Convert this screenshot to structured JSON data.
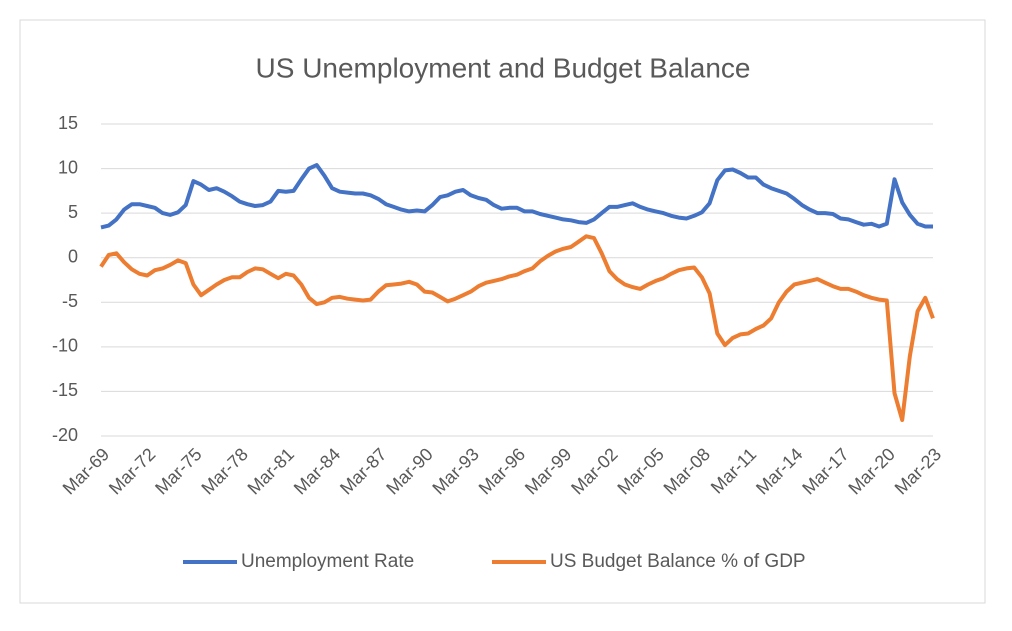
{
  "chart_data": {
    "type": "line",
    "title": "US Unemployment and Budget Balance",
    "categories": [
      "Mar-69",
      null,
      null,
      null,
      null,
      null,
      "Mar-72",
      null,
      null,
      null,
      null,
      null,
      "Mar-75",
      null,
      null,
      null,
      null,
      null,
      "Mar-78",
      null,
      null,
      null,
      null,
      null,
      "Mar-81",
      null,
      null,
      null,
      null,
      null,
      "Mar-84",
      null,
      null,
      null,
      null,
      null,
      "Mar-87",
      null,
      null,
      null,
      null,
      null,
      "Mar-90",
      null,
      null,
      null,
      null,
      null,
      "Mar-93",
      null,
      null,
      null,
      null,
      null,
      "Mar-96",
      null,
      null,
      null,
      null,
      null,
      "Mar-99",
      null,
      null,
      null,
      null,
      null,
      "Mar-02",
      null,
      null,
      null,
      null,
      null,
      "Mar-05",
      null,
      null,
      null,
      null,
      null,
      "Mar-08",
      null,
      null,
      null,
      null,
      null,
      "Mar-11",
      null,
      null,
      null,
      null,
      null,
      "Mar-14",
      null,
      null,
      null,
      null,
      null,
      "Mar-17",
      null,
      null,
      null,
      null,
      null,
      "Mar-20",
      null,
      null,
      null,
      null,
      null,
      "Mar-23"
    ],
    "series": [
      {
        "name": "Unemployment Rate",
        "color": "#4472c4",
        "values": [
          3.4,
          3.6,
          4.3,
          5.4,
          6.0,
          6.0,
          5.8,
          5.6,
          5.0,
          4.8,
          5.1,
          5.9,
          8.6,
          8.2,
          7.6,
          7.8,
          7.4,
          6.9,
          6.3,
          6.0,
          5.8,
          5.9,
          6.3,
          7.5,
          7.4,
          7.5,
          8.8,
          10.0,
          10.4,
          9.2,
          7.8,
          7.4,
          7.3,
          7.2,
          7.2,
          7.0,
          6.6,
          6.0,
          5.7,
          5.4,
          5.2,
          5.3,
          5.2,
          5.9,
          6.8,
          7.0,
          7.4,
          7.6,
          7.0,
          6.7,
          6.5,
          5.9,
          5.5,
          5.6,
          5.6,
          5.2,
          5.2,
          4.9,
          4.7,
          4.5,
          4.3,
          4.2,
          4.0,
          3.9,
          4.3,
          5.0,
          5.7,
          5.7,
          5.9,
          6.1,
          5.7,
          5.4,
          5.2,
          5.0,
          4.7,
          4.5,
          4.4,
          4.7,
          5.1,
          6.1,
          8.7,
          9.8,
          9.9,
          9.5,
          9.0,
          9.0,
          8.2,
          7.8,
          7.5,
          7.2,
          6.6,
          5.9,
          5.4,
          5.0,
          5.0,
          4.9,
          4.4,
          4.3,
          4.0,
          3.7,
          3.8,
          3.5,
          3.8,
          8.8,
          6.2,
          4.8,
          3.8,
          3.5,
          3.5
        ]
      },
      {
        "name": "US Budget Balance % of GDP",
        "color": "#ed7d31",
        "values": [
          -1.0,
          0.3,
          0.5,
          -0.5,
          -1.3,
          -1.8,
          -2.0,
          -1.4,
          -1.2,
          -0.8,
          -0.3,
          -0.6,
          -3.0,
          -4.2,
          -3.6,
          -3.0,
          -2.5,
          -2.2,
          -2.2,
          -1.6,
          -1.2,
          -1.3,
          -1.8,
          -2.3,
          -1.8,
          -2.0,
          -3.0,
          -4.5,
          -5.2,
          -5.0,
          -4.5,
          -4.4,
          -4.6,
          -4.7,
          -4.8,
          -4.7,
          -3.8,
          -3.1,
          -3.0,
          -2.9,
          -2.7,
          -3.0,
          -3.8,
          -3.9,
          -4.4,
          -4.9,
          -4.6,
          -4.2,
          -3.8,
          -3.2,
          -2.8,
          -2.6,
          -2.4,
          -2.1,
          -1.9,
          -1.5,
          -1.2,
          -0.4,
          0.2,
          0.7,
          1.0,
          1.2,
          1.8,
          2.4,
          2.2,
          0.5,
          -1.5,
          -2.4,
          -3.0,
          -3.3,
          -3.5,
          -3.0,
          -2.6,
          -2.3,
          -1.8,
          -1.4,
          -1.2,
          -1.1,
          -2.2,
          -4.0,
          -8.5,
          -9.8,
          -9.0,
          -8.6,
          -8.5,
          -8.0,
          -7.6,
          -6.8,
          -5.0,
          -3.8,
          -3.0,
          -2.8,
          -2.6,
          -2.4,
          -2.8,
          -3.2,
          -3.5,
          -3.5,
          -3.8,
          -4.2,
          -4.5,
          -4.7,
          -4.8,
          -15.2,
          -18.2,
          -11.0,
          -6.0,
          -4.5,
          -6.8
        ]
      }
    ],
    "ylim": [
      -20,
      15
    ],
    "yticks": [
      -20,
      -15,
      -10,
      -5,
      0,
      5,
      10,
      15
    ],
    "grid": true,
    "legend": "bottom"
  }
}
